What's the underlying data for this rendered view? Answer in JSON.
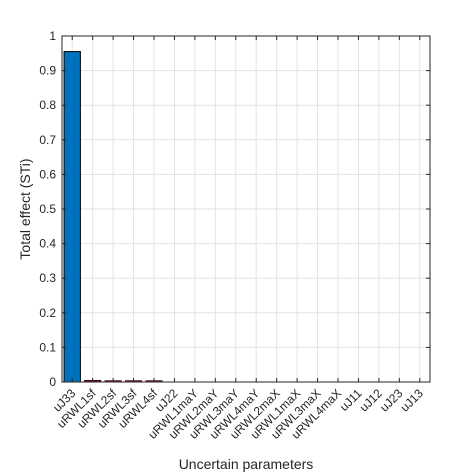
{
  "chart_data": {
    "type": "bar",
    "xlabel": "Uncertain parameters",
    "ylabel": "Total effect (STi)",
    "ylim": [
      0,
      1
    ],
    "yticks": [
      0,
      0.1,
      0.2,
      0.3,
      0.4,
      0.5,
      0.6,
      0.7,
      0.8,
      0.9,
      1
    ],
    "ytick_labels": [
      "0",
      "0.1",
      "0.2",
      "0.3",
      "0.4",
      "0.5",
      "0.6",
      "0.7",
      "0.8",
      "0.9",
      "1"
    ],
    "grid": true,
    "categories": [
      "uJ33",
      "uRWL1sf",
      "uRWL2sf",
      "uRWL3sf",
      "uRWL4sf",
      "uJ22",
      "uRWL1maY",
      "uRWL2maY",
      "uRWL3maY",
      "uRWL4maY",
      "uRWL2maX",
      "uRWL1maX",
      "uRWL3maX",
      "uRWL4maX",
      "uJ11",
      "uJ12",
      "uJ23",
      "uJ13"
    ],
    "values": [
      0.955,
      0.005,
      0.004,
      0.004,
      0.004,
      0,
      0,
      0,
      0,
      0,
      0,
      0,
      0,
      0,
      0,
      0,
      0,
      0
    ],
    "colors": {
      "bar_fill": "#0072BD",
      "small_bar_fill": "#A2142F",
      "bar_edge": "#000000",
      "grid": "#E3E3E3",
      "axis": "#262626"
    }
  }
}
